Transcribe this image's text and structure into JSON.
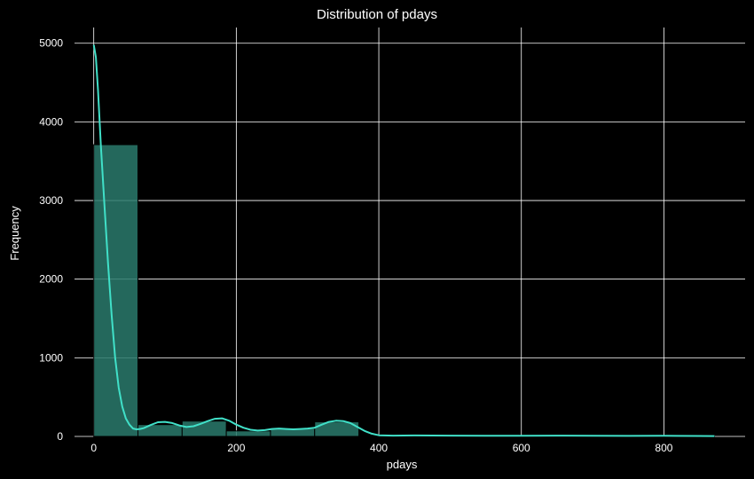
{
  "chart_data": {
    "type": "bar",
    "title": "Distribution of pdays",
    "xlabel": "pdays",
    "ylabel": "Frequency",
    "xlim": [
      -27,
      914
    ],
    "ylim": [
      0,
      5200
    ],
    "x_ticks": [
      0,
      200,
      400,
      600,
      800
    ],
    "y_ticks": [
      0,
      1000,
      2000,
      3000,
      4000,
      5000
    ],
    "bins": [
      {
        "x0": 0,
        "x1": 62,
        "count": 3710
      },
      {
        "x0": 62,
        "x1": 124,
        "count": 150
      },
      {
        "x0": 124,
        "x1": 186,
        "count": 195
      },
      {
        "x0": 186,
        "x1": 248,
        "count": 70
      },
      {
        "x0": 248,
        "x1": 310,
        "count": 100
      },
      {
        "x0": 310,
        "x1": 372,
        "count": 185
      },
      {
        "x0": 372,
        "x1": 434,
        "count": 10
      },
      {
        "x0": 434,
        "x1": 496,
        "count": 5
      },
      {
        "x0": 496,
        "x1": 558,
        "count": 3
      },
      {
        "x0": 558,
        "x1": 620,
        "count": 2
      },
      {
        "x0": 620,
        "x1": 682,
        "count": 1
      },
      {
        "x0": 682,
        "x1": 744,
        "count": 1
      },
      {
        "x0": 744,
        "x1": 806,
        "count": 1
      },
      {
        "x0": 806,
        "x1": 871,
        "count": 1
      }
    ],
    "kde": {
      "x": [
        0,
        3,
        6,
        10,
        15,
        20,
        25,
        30,
        35,
        40,
        45,
        50,
        55,
        60,
        65,
        70,
        80,
        90,
        100,
        110,
        120,
        130,
        140,
        150,
        160,
        170,
        180,
        190,
        200,
        210,
        220,
        230,
        240,
        250,
        260,
        270,
        280,
        290,
        300,
        310,
        320,
        330,
        340,
        350,
        360,
        370,
        380,
        390,
        400,
        420,
        450,
        500,
        550,
        600,
        650,
        700,
        750,
        800,
        850,
        871
      ],
      "y": [
        4980,
        4820,
        4400,
        3700,
        2950,
        2200,
        1550,
        1000,
        620,
        380,
        230,
        150,
        100,
        90,
        95,
        105,
        145,
        180,
        185,
        170,
        140,
        120,
        130,
        160,
        195,
        225,
        230,
        200,
        150,
        110,
        85,
        75,
        80,
        95,
        100,
        95,
        90,
        95,
        100,
        110,
        150,
        185,
        200,
        195,
        170,
        120,
        70,
        35,
        15,
        10,
        12,
        10,
        8,
        8,
        10,
        8,
        7,
        8,
        6,
        5
      ]
    },
    "bar_color": "#2a7a6c",
    "bar_edge_color": "#000000",
    "line_color": "#40e0c8",
    "background": "#000000",
    "grid": true,
    "grid_color": "#ffffff",
    "text_color": "#ffffff"
  }
}
